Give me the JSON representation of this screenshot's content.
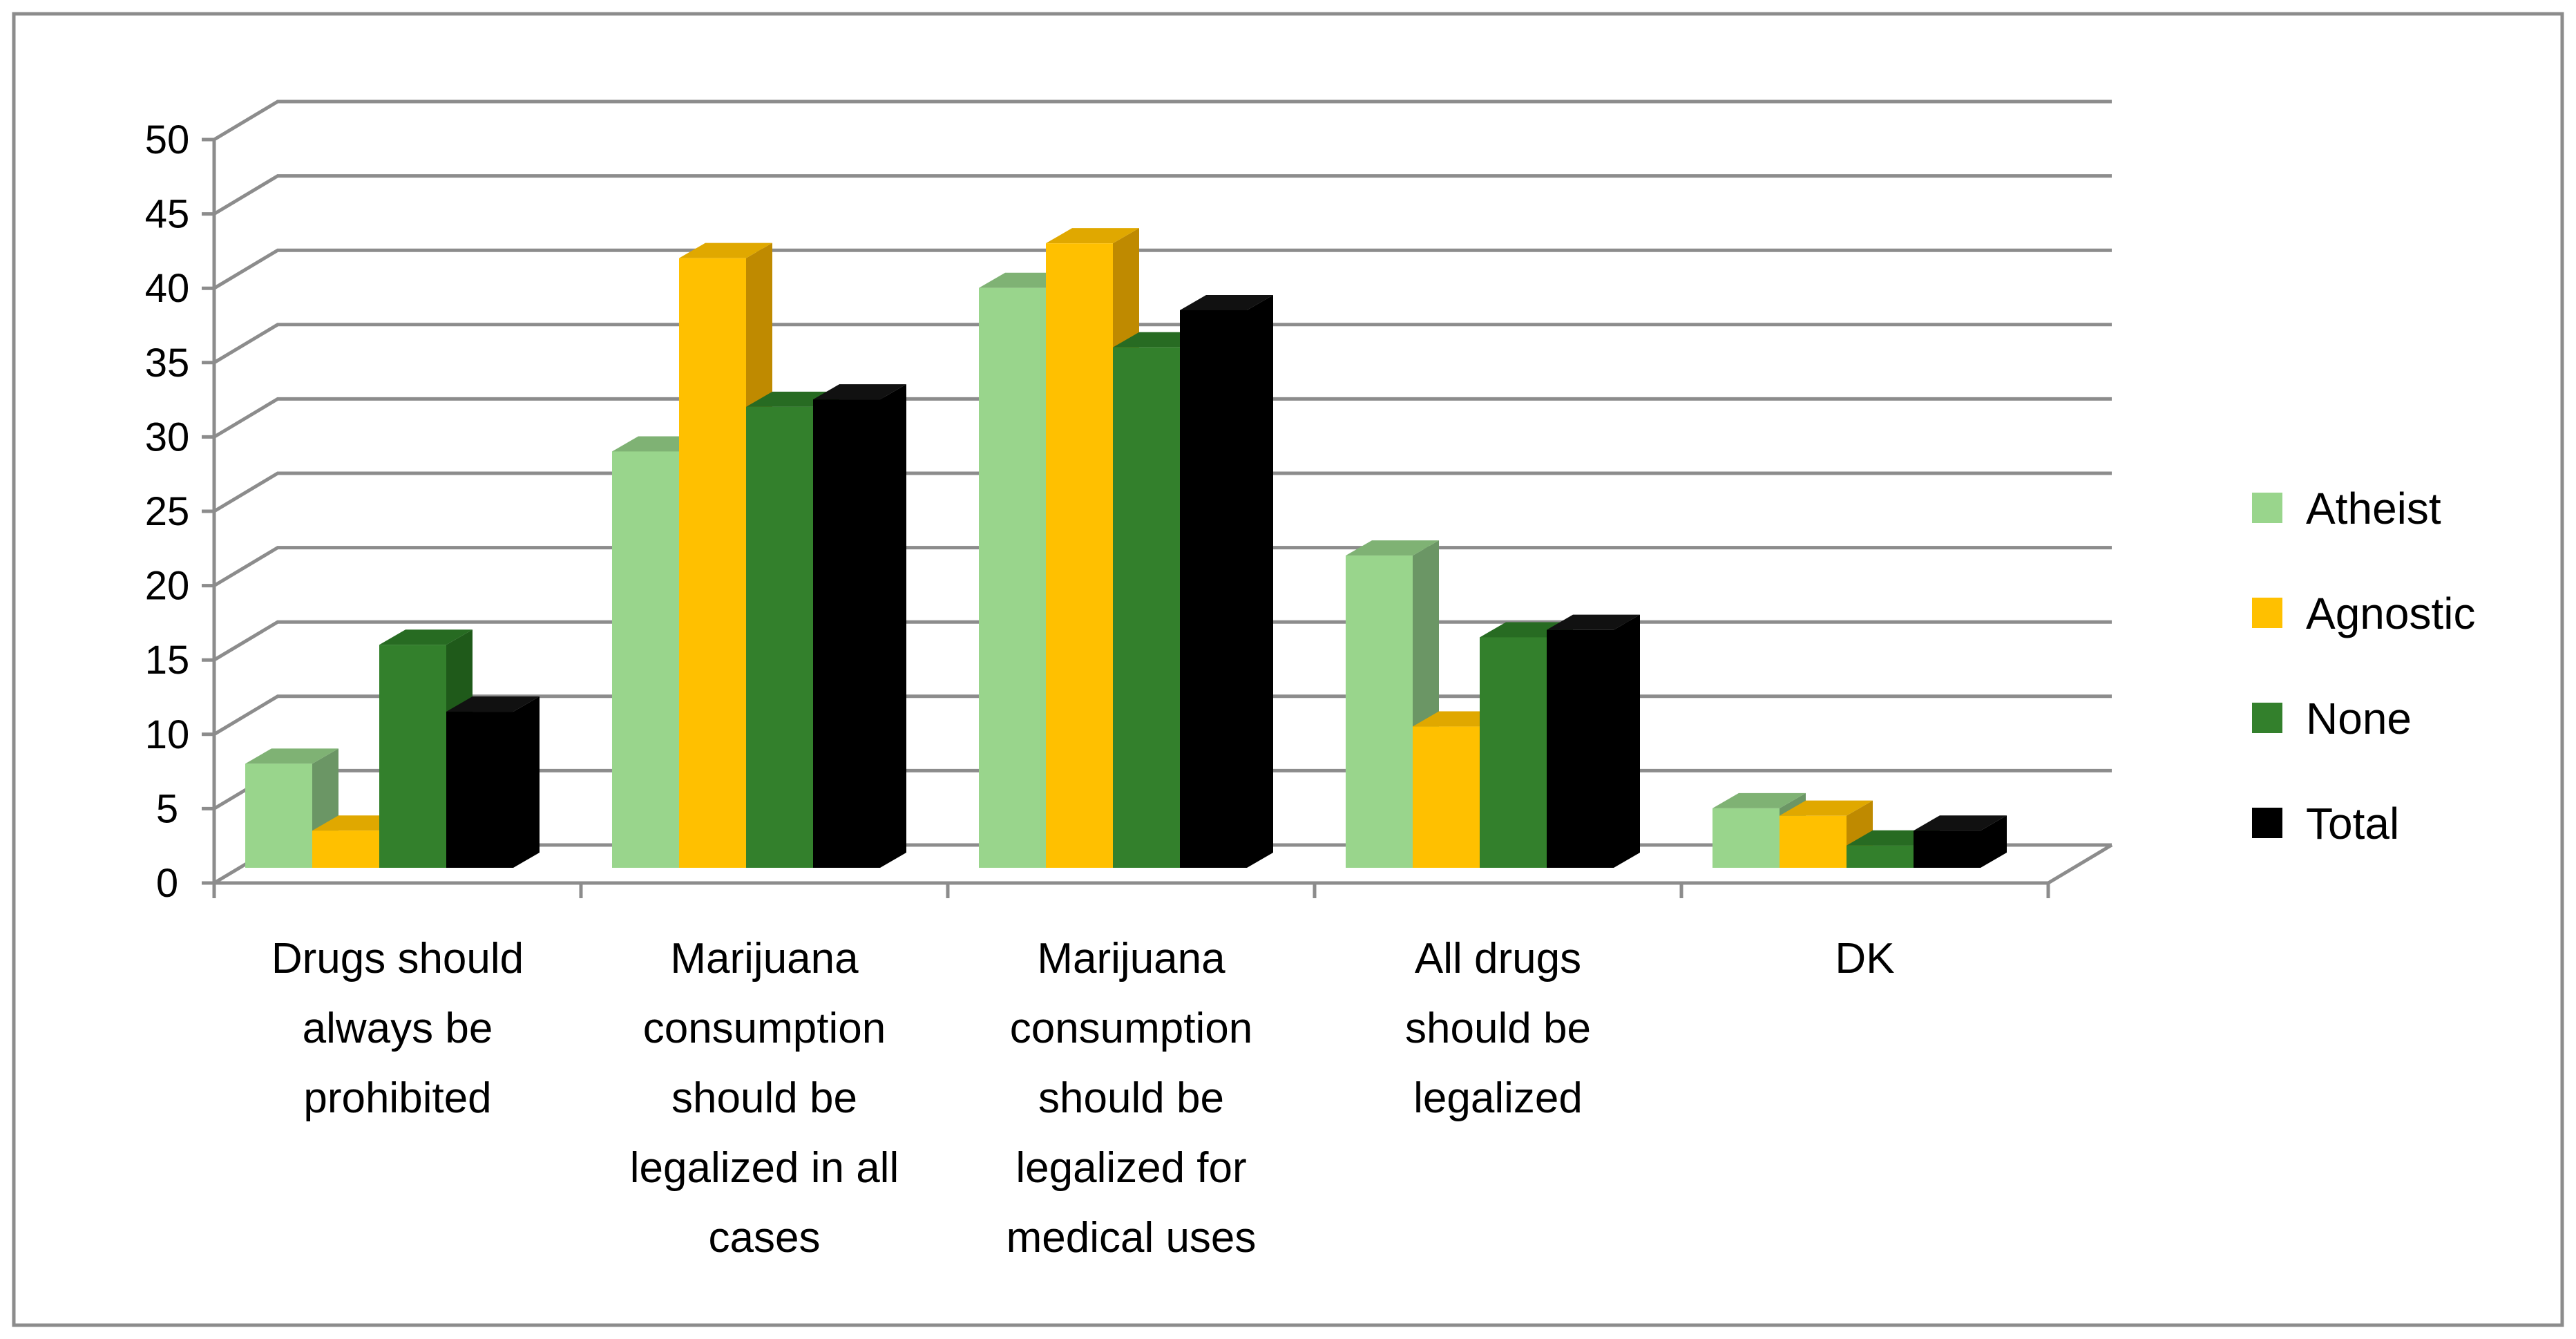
{
  "chart_data": {
    "type": "bar",
    "title": "",
    "xlabel": "",
    "ylabel": "",
    "ylim": [
      0,
      50
    ],
    "yticks": [
      0,
      5,
      10,
      15,
      20,
      25,
      30,
      35,
      40,
      45,
      50
    ],
    "grid": true,
    "legend_position": "right",
    "categories": [
      [
        "Drugs should",
        "always be",
        "prohibited"
      ],
      [
        "Marijuana",
        "consumption",
        "should be",
        "legalized in all",
        "cases"
      ],
      [
        "Marijuana",
        "consumption",
        "should be",
        "legalized for",
        "medical uses"
      ],
      [
        "All drugs",
        "should be",
        "legalized"
      ],
      [
        "DK"
      ]
    ],
    "series": [
      {
        "name": "Atheist",
        "color": "#99d58c",
        "side": "#6b9665",
        "top": "#7fb274",
        "values": [
          7,
          28,
          39,
          21,
          4
        ]
      },
      {
        "name": "Agnostic",
        "color": "#ffc000",
        "side": "#bf8a00",
        "top": "#e0a800",
        "values": [
          2.5,
          41,
          42,
          9.5,
          3.5
        ]
      },
      {
        "name": "None",
        "color": "#33802c",
        "side": "#1f5a1a",
        "top": "#276b22",
        "values": [
          15,
          31,
          35,
          15.5,
          1.5
        ]
      },
      {
        "name": "Total",
        "color": "#000000",
        "side": "#000000",
        "top": "#111111",
        "values": [
          10.5,
          31.5,
          37.5,
          16,
          2.5
        ]
      }
    ]
  }
}
